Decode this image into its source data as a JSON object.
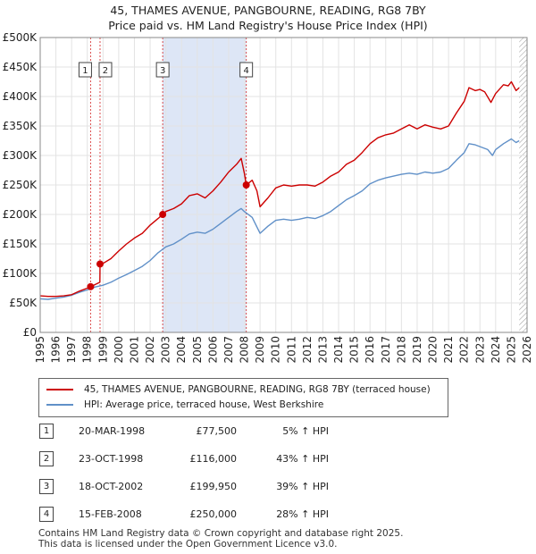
{
  "title_line1": "45, THAMES AVENUE, PANGBOURNE, READING, RG8 7BY",
  "title_line2": "Price paid vs. HM Land Registry's House Price Index (HPI)",
  "chart_data": {
    "type": "line",
    "title": "45, THAMES AVENUE, PANGBOURNE, READING, RG8 7BY — Price paid vs. HM Land Registry's House Price Index (HPI)",
    "xlim": [
      1995,
      2026
    ],
    "ylim": [
      0,
      500000
    ],
    "x_ticks": [
      "1995",
      "1996",
      "1997",
      "1998",
      "1999",
      "2000",
      "2001",
      "2002",
      "2003",
      "2004",
      "2005",
      "2006",
      "2007",
      "2008",
      "2009",
      "2010",
      "2011",
      "2012",
      "2013",
      "2014",
      "2015",
      "2016",
      "2017",
      "2018",
      "2019",
      "2020",
      "2021",
      "2022",
      "2023",
      "2024",
      "2025",
      "2026"
    ],
    "y_ticks": [
      {
        "value": 0,
        "label": "£0"
      },
      {
        "value": 50000,
        "label": "£50K"
      },
      {
        "value": 100000,
        "label": "£100K"
      },
      {
        "value": 150000,
        "label": "£150K"
      },
      {
        "value": 200000,
        "label": "£200K"
      },
      {
        "value": 250000,
        "label": "£250K"
      },
      {
        "value": 300000,
        "label": "£300K"
      },
      {
        "value": 350000,
        "label": "£350K"
      },
      {
        "value": 400000,
        "label": "£400K"
      },
      {
        "value": 450000,
        "label": "£450K"
      },
      {
        "value": 500000,
        "label": "£500K"
      }
    ],
    "grid": true,
    "shaded_range": [
      2002.8,
      2008.12
    ],
    "hatched_from": 2025.5,
    "series": [
      {
        "name": "45, THAMES AVENUE, PANGBOURNE, READING, RG8 7BY (terraced house)",
        "color": "#cc0000",
        "points": [
          [
            1995.0,
            62000
          ],
          [
            1995.5,
            61000
          ],
          [
            1996.0,
            61000
          ],
          [
            1996.5,
            62000
          ],
          [
            1997.0,
            64000
          ],
          [
            1997.5,
            70000
          ],
          [
            1998.0,
            75000
          ],
          [
            1998.21,
            77500
          ],
          [
            1998.4,
            80000
          ],
          [
            1998.8,
            85000
          ],
          [
            1998.81,
            116000
          ],
          [
            1999.0,
            117000
          ],
          [
            1999.5,
            125000
          ],
          [
            2000.0,
            138000
          ],
          [
            2000.5,
            150000
          ],
          [
            2001.0,
            160000
          ],
          [
            2001.5,
            168000
          ],
          [
            2002.0,
            182000
          ],
          [
            2002.5,
            193000
          ],
          [
            2002.8,
            199950
          ],
          [
            2003.0,
            205000
          ],
          [
            2003.5,
            210000
          ],
          [
            2004.0,
            218000
          ],
          [
            2004.5,
            232000
          ],
          [
            2005.0,
            235000
          ],
          [
            2005.5,
            228000
          ],
          [
            2006.0,
            240000
          ],
          [
            2006.5,
            255000
          ],
          [
            2007.0,
            272000
          ],
          [
            2007.5,
            285000
          ],
          [
            2007.8,
            295000
          ],
          [
            2008.0,
            270000
          ],
          [
            2008.12,
            250000
          ],
          [
            2008.5,
            258000
          ],
          [
            2008.8,
            240000
          ],
          [
            2009.0,
            213000
          ],
          [
            2009.5,
            228000
          ],
          [
            2010.0,
            245000
          ],
          [
            2010.5,
            250000
          ],
          [
            2011.0,
            248000
          ],
          [
            2011.5,
            250000
          ],
          [
            2012.0,
            250000
          ],
          [
            2012.5,
            248000
          ],
          [
            2013.0,
            255000
          ],
          [
            2013.5,
            265000
          ],
          [
            2014.0,
            272000
          ],
          [
            2014.5,
            285000
          ],
          [
            2015.0,
            292000
          ],
          [
            2015.5,
            305000
          ],
          [
            2016.0,
            320000
          ],
          [
            2016.5,
            330000
          ],
          [
            2017.0,
            335000
          ],
          [
            2017.5,
            338000
          ],
          [
            2018.0,
            345000
          ],
          [
            2018.5,
            352000
          ],
          [
            2019.0,
            345000
          ],
          [
            2019.5,
            352000
          ],
          [
            2020.0,
            348000
          ],
          [
            2020.5,
            345000
          ],
          [
            2021.0,
            350000
          ],
          [
            2021.5,
            372000
          ],
          [
            2022.0,
            392000
          ],
          [
            2022.3,
            415000
          ],
          [
            2022.7,
            410000
          ],
          [
            2023.0,
            412000
          ],
          [
            2023.3,
            408000
          ],
          [
            2023.7,
            390000
          ],
          [
            2024.0,
            405000
          ],
          [
            2024.5,
            420000
          ],
          [
            2024.8,
            418000
          ],
          [
            2025.0,
            425000
          ],
          [
            2025.3,
            410000
          ],
          [
            2025.5,
            415000
          ]
        ]
      },
      {
        "name": "HPI: Average price, terraced house, West Berkshire",
        "color": "#6090c8",
        "points": [
          [
            1995.0,
            57000
          ],
          [
            1995.5,
            56000
          ],
          [
            1996.0,
            58000
          ],
          [
            1996.5,
            60000
          ],
          [
            1997.0,
            63000
          ],
          [
            1997.5,
            68000
          ],
          [
            1998.0,
            72000
          ],
          [
            1998.5,
            77000
          ],
          [
            1999.0,
            80000
          ],
          [
            1999.5,
            85000
          ],
          [
            2000.0,
            92000
          ],
          [
            2000.5,
            98000
          ],
          [
            2001.0,
            105000
          ],
          [
            2001.5,
            112000
          ],
          [
            2002.0,
            122000
          ],
          [
            2002.5,
            135000
          ],
          [
            2003.0,
            145000
          ],
          [
            2003.5,
            150000
          ],
          [
            2004.0,
            158000
          ],
          [
            2004.5,
            167000
          ],
          [
            2005.0,
            170000
          ],
          [
            2005.5,
            168000
          ],
          [
            2006.0,
            175000
          ],
          [
            2006.5,
            185000
          ],
          [
            2007.0,
            195000
          ],
          [
            2007.5,
            205000
          ],
          [
            2007.8,
            210000
          ],
          [
            2008.0,
            205000
          ],
          [
            2008.5,
            195000
          ],
          [
            2009.0,
            168000
          ],
          [
            2009.5,
            180000
          ],
          [
            2010.0,
            190000
          ],
          [
            2010.5,
            192000
          ],
          [
            2011.0,
            190000
          ],
          [
            2011.5,
            192000
          ],
          [
            2012.0,
            195000
          ],
          [
            2012.5,
            193000
          ],
          [
            2013.0,
            198000
          ],
          [
            2013.5,
            205000
          ],
          [
            2014.0,
            215000
          ],
          [
            2014.5,
            225000
          ],
          [
            2015.0,
            232000
          ],
          [
            2015.5,
            240000
          ],
          [
            2016.0,
            252000
          ],
          [
            2016.5,
            258000
          ],
          [
            2017.0,
            262000
          ],
          [
            2017.5,
            265000
          ],
          [
            2018.0,
            268000
          ],
          [
            2018.5,
            270000
          ],
          [
            2019.0,
            268000
          ],
          [
            2019.5,
            272000
          ],
          [
            2020.0,
            270000
          ],
          [
            2020.5,
            272000
          ],
          [
            2021.0,
            278000
          ],
          [
            2021.5,
            292000
          ],
          [
            2022.0,
            305000
          ],
          [
            2022.3,
            320000
          ],
          [
            2022.7,
            318000
          ],
          [
            2023.0,
            315000
          ],
          [
            2023.5,
            310000
          ],
          [
            2023.8,
            300000
          ],
          [
            2024.0,
            310000
          ],
          [
            2024.5,
            320000
          ],
          [
            2025.0,
            328000
          ],
          [
            2025.3,
            322000
          ],
          [
            2025.5,
            325000
          ]
        ]
      }
    ],
    "sales": [
      {
        "label": "1",
        "date": "20-MAR-1998",
        "x": 1998.21,
        "price_value": 77500,
        "price": "£77,500",
        "hpi": "5% ↑ HPI"
      },
      {
        "label": "2",
        "date": "23-OCT-1998",
        "x": 1998.81,
        "price_value": 116000,
        "price": "£116,000",
        "hpi": "43% ↑ HPI"
      },
      {
        "label": "3",
        "date": "18-OCT-2002",
        "x": 2002.8,
        "price_value": 199950,
        "price": "£199,950",
        "hpi": "39% ↑ HPI"
      },
      {
        "label": "4",
        "date": "15-FEB-2008",
        "x": 2008.12,
        "price_value": 250000,
        "price": "£250,000",
        "hpi": "28% ↑ HPI"
      }
    ]
  },
  "legend": {
    "property": "45, THAMES AVENUE, PANGBOURNE, READING, RG8 7BY (terraced house)",
    "hpi": "HPI: Average price, terraced house, West Berkshire"
  },
  "colors": {
    "property": "#cc0000",
    "hpi": "#6090c8",
    "sale_line": "#cc0000"
  },
  "footer": {
    "line1": "Contains HM Land Registry data © Crown copyright and database right 2025.",
    "line2": "This data is licensed under the Open Government Licence v3.0."
  }
}
